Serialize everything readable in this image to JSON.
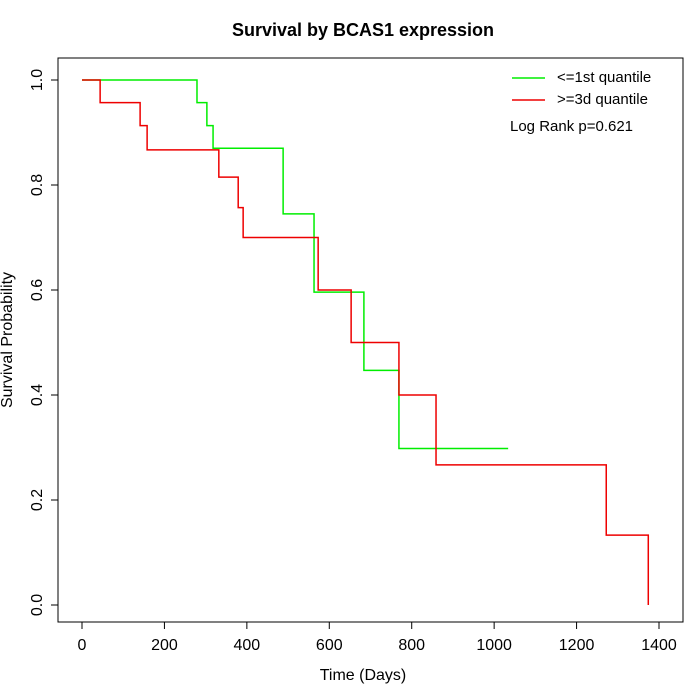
{
  "chart_data": {
    "type": "step",
    "title": "Survival by BCAS1 expression",
    "xlabel": "Time (Days)",
    "ylabel": "Survival Probability",
    "annotation": "Log Rank p=0.621",
    "legend_position": "top-right",
    "xlim": [
      0,
      1400
    ],
    "ylim": [
      0,
      1
    ],
    "xticks": [
      0,
      200,
      400,
      600,
      800,
      1000,
      1200,
      1400
    ],
    "yticks": [
      {
        "value": 0,
        "label": "0.0"
      },
      {
        "value": 0.2,
        "label": "0.2"
      },
      {
        "value": 0.4,
        "label": "0.4"
      },
      {
        "value": 0.6,
        "label": "0.6"
      },
      {
        "value": 0.8,
        "label": "0.8"
      },
      {
        "value": 1,
        "label": "1.0"
      }
    ],
    "series": [
      {
        "name": "<=1st quantile",
        "color": "#00ee00",
        "x": [
          0,
          279,
          303,
          318,
          488,
          563,
          684,
          769,
          1034
        ],
        "values": [
          1,
          0.957,
          0.913,
          0.87,
          0.745,
          0.596,
          0.447,
          0.298,
          0.298
        ]
      },
      {
        "name": ">=3d quantile",
        "color": "#ee0000",
        "x": [
          0,
          44,
          141,
          158,
          332,
          379,
          391,
          573,
          653,
          769,
          859,
          1272,
          1374
        ],
        "values": [
          1,
          0.957,
          0.913,
          0.867,
          0.815,
          0.757,
          0.7,
          0.6,
          0.5,
          0.4,
          0.267,
          0.133,
          0
        ]
      }
    ]
  }
}
